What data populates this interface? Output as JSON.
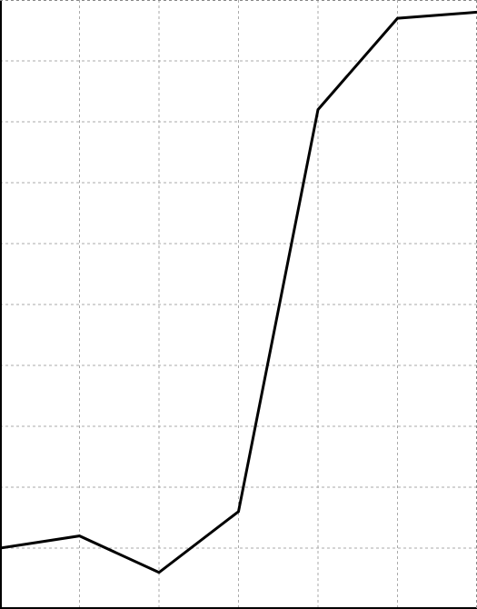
{
  "chart_data": {
    "type": "line",
    "title": "",
    "xlabel": "",
    "ylabel": "",
    "x": [
      0,
      1,
      2,
      3,
      4,
      5,
      6
    ],
    "series": [
      {
        "values": [
          1.0,
          1.2,
          0.6,
          1.6,
          8.2,
          9.7,
          9.8
        ]
      }
    ],
    "xlim": [
      0,
      6
    ],
    "ylim": [
      0,
      10
    ],
    "grid": true,
    "grid_x_divisions": 6,
    "grid_y_divisions": 10,
    "line_color": "#000000",
    "grid_color": "#aaaaaa"
  }
}
